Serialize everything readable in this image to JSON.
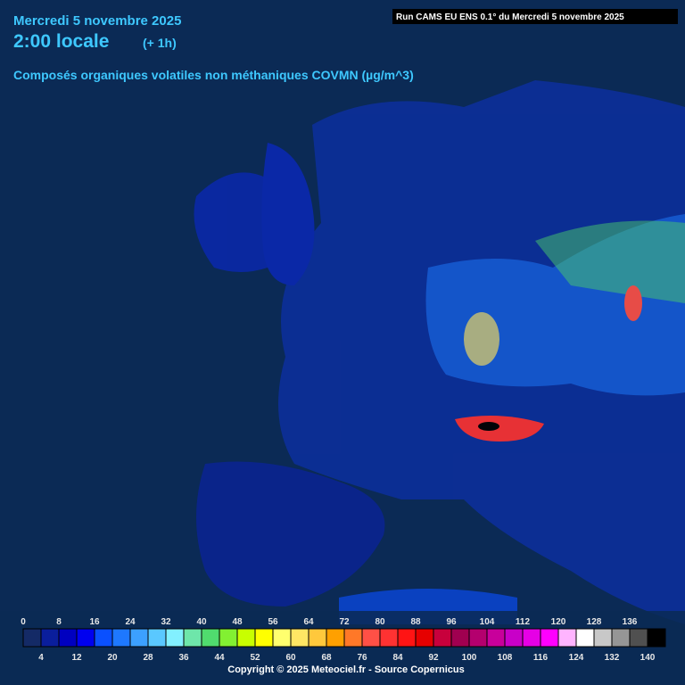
{
  "header": {
    "date": "Mercredi 5 novembre 2025",
    "time": "2:00 locale",
    "offset": "(+ 1h)",
    "title": "Composés organiques volatiles non méthaniques COVMN (µg/m^3)",
    "run": "Run CAMS EU ENS 0.1° du Mercredi 5 novembre 2025"
  },
  "legend": {
    "ticks": [
      0,
      4,
      8,
      12,
      16,
      20,
      24,
      28,
      32,
      36,
      40,
      44,
      48,
      52,
      56,
      60,
      64,
      68,
      72,
      76,
      80,
      84,
      88,
      92,
      96,
      100,
      104,
      108,
      112,
      116,
      120,
      124,
      128,
      132,
      136,
      140
    ],
    "colors": [
      "#142a66",
      "#0a1e9c",
      "#0000c0",
      "#0000f0",
      "#0a50ff",
      "#1e78ff",
      "#3ca0ff",
      "#5ac8ff",
      "#82f0ff",
      "#6ee6aa",
      "#50dc6e",
      "#82f032",
      "#c8ff00",
      "#ffff00",
      "#ffff6e",
      "#ffe664",
      "#ffc83c",
      "#ffa000",
      "#ff7828",
      "#ff5046",
      "#ff3232",
      "#ff1414",
      "#e60000",
      "#c8003c",
      "#a00050",
      "#b4006e",
      "#c8009b",
      "#c800c8",
      "#e600e6",
      "#ff00ff",
      "#ffb4ff",
      "#ffffff",
      "#c8c8c8",
      "#969696",
      "#505050",
      "#000000"
    ]
  },
  "footer": {
    "copyright": "Copyright © 2025 Meteociel.fr - Source Copernicus"
  }
}
